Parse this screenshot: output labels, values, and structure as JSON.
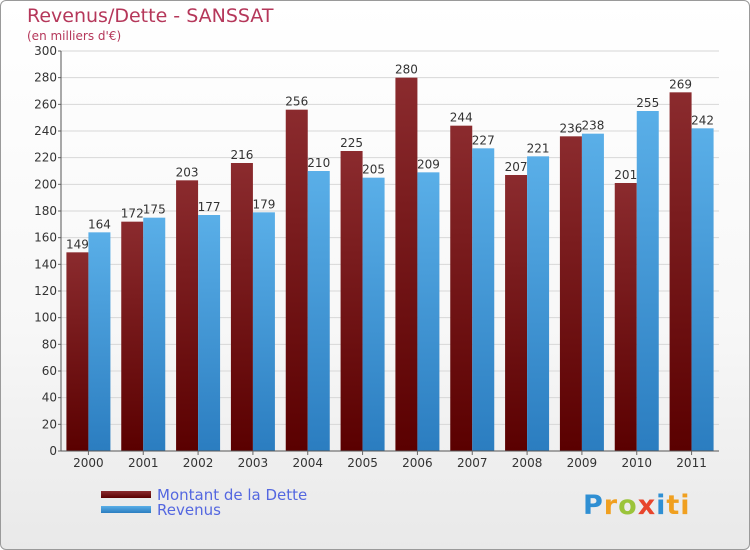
{
  "title": "Revenus/Dette - SANSSAT",
  "subtitle": "(en milliers d'€)",
  "logo": [
    "P",
    "r",
    "o",
    "x",
    "i",
    "ti"
  ],
  "colors": {
    "dette_top": "#8b2b2e",
    "dette_bottom": "#5a0000",
    "revenus_top": "#5aafe8",
    "revenus_bottom": "#2b7dc0",
    "grid": "#d7d7d7",
    "text": "#333333"
  },
  "chart_data": {
    "type": "bar",
    "categories": [
      "2000",
      "2001",
      "2002",
      "2003",
      "2004",
      "2005",
      "2006",
      "2007",
      "2008",
      "2009",
      "2010",
      "2011"
    ],
    "series": [
      {
        "name": "Montant de la Dette",
        "values": [
          149,
          172,
          203,
          216,
          256,
          225,
          280,
          244,
          207,
          236,
          201,
          269
        ]
      },
      {
        "name": "Revenus",
        "values": [
          164,
          175,
          177,
          179,
          210,
          205,
          209,
          227,
          221,
          238,
          255,
          242
        ]
      }
    ],
    "ylim": [
      0,
      300
    ],
    "yticks": [
      0,
      20,
      40,
      60,
      80,
      100,
      120,
      140,
      160,
      180,
      200,
      220,
      240,
      260,
      280,
      300
    ],
    "grid": true,
    "legend": "bottom-left"
  }
}
